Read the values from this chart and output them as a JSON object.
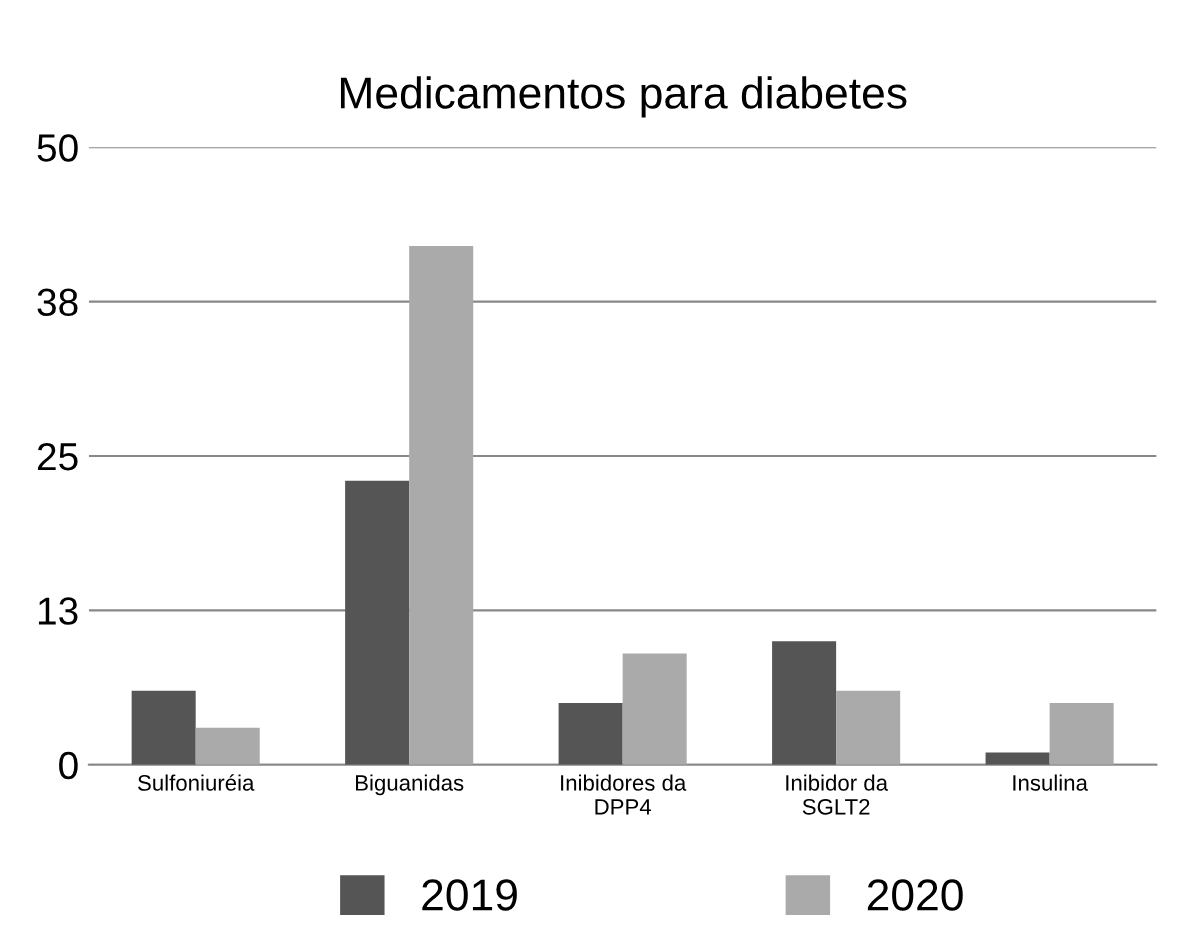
{
  "chart_data": {
    "type": "bar",
    "title": "Medicamentos para diabetes",
    "categories": [
      "Sulfoniuréia",
      "Biguanidas",
      "Inibidores da\nDPP4",
      "Inibidor da\nSGLT2",
      "Insulina"
    ],
    "series": [
      {
        "name": "2019",
        "color": "#555555",
        "values": [
          6,
          23,
          5,
          10,
          1
        ]
      },
      {
        "name": "2020",
        "color": "#aaaaaa",
        "values": [
          3,
          42,
          9,
          6,
          5
        ]
      }
    ],
    "ylim": [
      0,
      50
    ],
    "yticks": [
      0,
      {
        "value": 12.5,
        "label": "13"
      },
      25,
      {
        "value": 37.5,
        "label": "38"
      },
      50
    ],
    "grid": "y",
    "legend": "bottom"
  }
}
